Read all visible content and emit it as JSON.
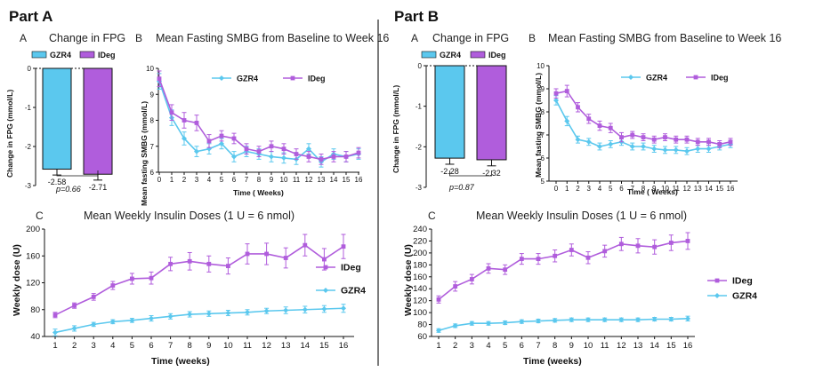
{
  "colors": {
    "gzr4": "#5bc8ee",
    "ideg": "#b05ddc",
    "divider": "#222222"
  },
  "parts": [
    {
      "title": "Part A",
      "fpg": {
        "letter": "A",
        "title": "Change in FPG",
        "ylabel": "Change in FPG  (mmol/L)",
        "ylim": [
          -3,
          0
        ],
        "yticks": [
          0,
          -1,
          -2,
          -3
        ],
        "legend": [
          "GZR4",
          "IDeg"
        ],
        "bars": [
          {
            "name": "GZR4",
            "value": -2.58,
            "label": "-2.58",
            "err": 0.15
          },
          {
            "name": "IDeg",
            "value": -2.71,
            "label": "-2.71",
            "err": 0.15
          }
        ],
        "p_value": "p=0.66"
      },
      "smbg": {
        "letter": "B",
        "title": "Mean Fasting SMBG from Baseline to Week 16",
        "ylabel": "Mean fasting SMBG (mmol/L)",
        "xlabel": "Time ( Weeks)",
        "ylim": [
          6,
          10
        ],
        "yticks": [
          6,
          7,
          8,
          9,
          10
        ],
        "xticks": [
          0,
          1,
          2,
          3,
          4,
          5,
          6,
          7,
          8,
          9,
          10,
          11,
          12,
          13,
          14,
          15,
          16
        ],
        "legend": [
          "GZR4",
          "IDeg"
        ],
        "series": [
          {
            "name": "GZR4",
            "values": [
              9.5,
              8.1,
              7.3,
              6.8,
              6.9,
              7.1,
              6.6,
              6.8,
              6.7,
              6.6,
              6.55,
              6.5,
              6.9,
              6.4,
              6.7,
              6.6,
              6.7
            ],
            "err": [
              0.3,
              0.3,
              0.25,
              0.2,
              0.2,
              0.2,
              0.2,
              0.2,
              0.2,
              0.2,
              0.2,
              0.2,
              0.2,
              0.2,
              0.2,
              0.2,
              0.2
            ]
          },
          {
            "name": "IDeg",
            "values": [
              9.6,
              8.3,
              8.0,
              7.9,
              7.2,
              7.4,
              7.3,
              6.9,
              6.8,
              7.0,
              6.9,
              6.7,
              6.6,
              6.5,
              6.6,
              6.6,
              6.75
            ],
            "err": [
              0.3,
              0.3,
              0.3,
              0.3,
              0.25,
              0.2,
              0.2,
              0.2,
              0.2,
              0.2,
              0.2,
              0.2,
              0.2,
              0.2,
              0.2,
              0.2,
              0.2
            ]
          }
        ]
      },
      "dose": {
        "letter": "C",
        "title": "Mean Weekly Insulin Doses (1 U = 6 nmol)",
        "ylabel": "Weekly dose (U)",
        "xlabel": "Time (weeks)",
        "ylim": [
          40,
          200
        ],
        "yticks": [
          40,
          80,
          120,
          160,
          200
        ],
        "xticks": [
          1,
          2,
          3,
          4,
          5,
          6,
          7,
          8,
          9,
          10,
          11,
          12,
          13,
          14,
          15,
          16
        ],
        "legend": [
          "IDeg",
          "GZR4"
        ],
        "series": [
          {
            "name": "IDeg",
            "values": [
              72,
              86,
              99,
              116,
              126,
              127,
              148,
              152,
              148,
              145,
              163,
              163,
              157,
              176,
              155,
              174
            ],
            "err": [
              4,
              4,
              5,
              6,
              8,
              9,
              10,
              13,
              12,
              12,
              15,
              16,
              15,
              16,
              16,
              18
            ]
          },
          {
            "name": "GZR4",
            "values": [
              46,
              52,
              58,
              62,
              64,
              67,
              70,
              73,
              74,
              75,
              76,
              78,
              79,
              80,
              81,
              82
            ],
            "err": [
              5,
              4,
              3,
              3,
              3,
              4,
              4,
              4,
              4,
              4,
              4,
              4,
              5,
              5,
              5,
              6
            ]
          }
        ]
      }
    },
    {
      "title": "Part B",
      "fpg": {
        "letter": "A",
        "title": "Change in FPG",
        "ylabel": "Change in FPG  (mmol/L)",
        "ylim": [
          -3,
          0
        ],
        "yticks": [
          0,
          -1,
          -2,
          -3
        ],
        "legend": [
          "GZR4",
          "IDeg"
        ],
        "bars": [
          {
            "name": "GZR4",
            "value": -2.28,
            "label": "-2.28",
            "err": 0.15
          },
          {
            "name": "IDeg",
            "value": -2.32,
            "label": "-2.32",
            "err": 0.15
          }
        ],
        "p_value": "p=0.87"
      },
      "smbg": {
        "letter": "B",
        "title": "Mean Fasting SMBG from Baseline to Week 16",
        "ylabel": "Mean fasting SMBG (mmol/L)",
        "xlabel": "Time ( Weeks)",
        "ylim": [
          5,
          10
        ],
        "yticks": [
          5,
          6,
          7,
          8,
          9,
          10
        ],
        "xticks": [
          0,
          1,
          2,
          3,
          4,
          5,
          6,
          7,
          8,
          9,
          10,
          11,
          12,
          13,
          14,
          15,
          16
        ],
        "legend": [
          "GZR4",
          "IDeg"
        ],
        "series": [
          {
            "name": "GZR4",
            "values": [
              8.5,
              7.6,
              6.8,
              6.7,
              6.5,
              6.6,
              6.7,
              6.5,
              6.5,
              6.4,
              6.35,
              6.35,
              6.3,
              6.4,
              6.4,
              6.5,
              6.6
            ],
            "err": [
              0.2,
              0.2,
              0.15,
              0.15,
              0.15,
              0.15,
              0.15,
              0.15,
              0.15,
              0.15,
              0.15,
              0.15,
              0.15,
              0.15,
              0.15,
              0.15,
              0.15
            ]
          },
          {
            "name": "IDeg",
            "values": [
              8.8,
              8.9,
              8.2,
              7.7,
              7.4,
              7.3,
              6.9,
              7.0,
              6.9,
              6.8,
              6.9,
              6.8,
              6.8,
              6.7,
              6.7,
              6.6,
              6.7
            ],
            "err": [
              0.2,
              0.25,
              0.2,
              0.2,
              0.2,
              0.2,
              0.2,
              0.15,
              0.15,
              0.15,
              0.15,
              0.15,
              0.15,
              0.15,
              0.15,
              0.15,
              0.15
            ]
          }
        ]
      },
      "dose": {
        "letter": "C",
        "title": "Mean Weekly Insulin Doses (1 U = 6 nmol)",
        "ylabel": "Weekly dose (U)",
        "xlabel": "Time (weeks)",
        "ylim": [
          60,
          240
        ],
        "yticks": [
          60,
          80,
          100,
          120,
          140,
          160,
          180,
          200,
          220,
          240
        ],
        "xticks": [
          1,
          2,
          3,
          4,
          5,
          6,
          7,
          8,
          9,
          10,
          11,
          12,
          13,
          14,
          15,
          16
        ],
        "legend": [
          "IDeg",
          "GZR4"
        ],
        "series": [
          {
            "name": "IDeg",
            "values": [
              122,
              144,
              156,
              174,
              172,
              190,
              190,
              195,
              205,
              192,
              203,
              215,
              212,
              210,
              217,
              220
            ],
            "err": [
              6,
              8,
              8,
              8,
              8,
              9,
              9,
              10,
              10,
              10,
              10,
              11,
              12,
              12,
              13,
              14
            ]
          },
          {
            "name": "GZR4",
            "values": [
              70,
              78,
              82,
              82,
              83,
              85,
              86,
              87,
              88,
              88,
              88,
              88,
              88,
              89,
              89,
              90
            ],
            "err": [
              3,
              3,
              3,
              3,
              3,
              3,
              3,
              3,
              3,
              3,
              3,
              3,
              3,
              3,
              3,
              4
            ]
          }
        ]
      }
    }
  ]
}
